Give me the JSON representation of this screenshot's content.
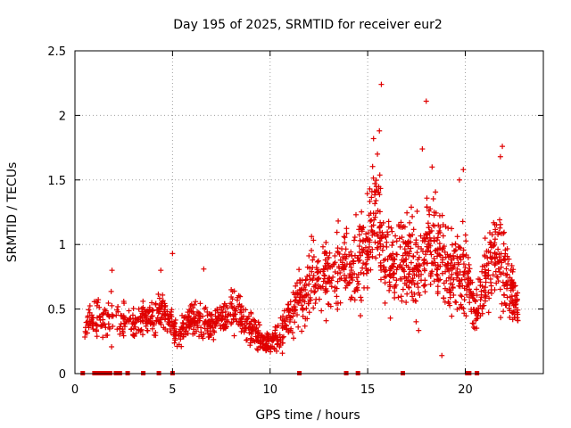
{
  "chart_data": {
    "type": "scatter",
    "title": "Day 195 of 2025, SRMTID for receiver eur2",
    "xlabel": "GPS time / hours",
    "ylabel": "SRMTID / TECUs",
    "xlim": [
      0,
      24
    ],
    "ylim": [
      0,
      2.5
    ],
    "x_ticks": [
      "0",
      "5",
      "10",
      "15",
      "20"
    ],
    "y_ticks": [
      "0",
      "0.5",
      "1",
      "1.5",
      "2",
      "2.5"
    ],
    "grid": true,
    "marker": "+",
    "color": "#e00000",
    "zero_points_x": [
      0.4,
      1.0,
      1.2,
      1.4,
      1.6,
      1.8,
      2.1,
      2.3,
      2.7,
      3.5,
      4.3,
      5.0,
      11.5,
      13.9,
      14.5,
      16.8,
      20.1,
      20.2,
      20.6
    ],
    "series": [
      {
        "name": "SRMTID",
        "samples": [
          [
            0.5,
            0.4,
            0.12
          ],
          [
            1.5,
            0.45,
            0.15
          ],
          [
            2.9,
            0.4,
            0.1
          ],
          [
            3.7,
            0.42,
            0.1
          ],
          [
            4.5,
            0.5,
            0.13
          ],
          [
            5.3,
            0.3,
            0.08
          ],
          [
            6.0,
            0.42,
            0.12
          ],
          [
            6.8,
            0.38,
            0.1
          ],
          [
            7.6,
            0.44,
            0.12
          ],
          [
            8.4,
            0.48,
            0.14
          ],
          [
            9.1,
            0.33,
            0.1
          ],
          [
            9.8,
            0.22,
            0.07
          ],
          [
            10.6,
            0.3,
            0.1
          ],
          [
            11.3,
            0.55,
            0.18
          ],
          [
            12.0,
            0.7,
            0.22
          ],
          [
            12.8,
            0.75,
            0.25
          ],
          [
            13.5,
            0.8,
            0.25
          ],
          [
            14.2,
            0.85,
            0.25
          ],
          [
            14.9,
            1.0,
            0.3
          ],
          [
            15.4,
            1.3,
            0.33
          ],
          [
            15.9,
            0.85,
            0.3
          ],
          [
            16.5,
            0.8,
            0.28
          ],
          [
            17.1,
            0.9,
            0.32
          ],
          [
            17.6,
            0.8,
            0.3
          ],
          [
            18.2,
            1.05,
            0.3
          ],
          [
            18.7,
            0.95,
            0.3
          ],
          [
            19.3,
            0.75,
            0.28
          ],
          [
            19.9,
            0.8,
            0.3
          ],
          [
            20.5,
            0.5,
            0.15
          ],
          [
            21.1,
            0.75,
            0.22
          ],
          [
            21.7,
            1.0,
            0.35
          ],
          [
            22.3,
            0.65,
            0.2
          ],
          [
            22.7,
            0.5,
            0.12
          ]
        ]
      }
    ],
    "outliers": [
      [
        15.7,
        2.24
      ],
      [
        18.0,
        2.11
      ],
      [
        15.6,
        1.88
      ],
      [
        15.3,
        1.82
      ],
      [
        17.8,
        1.74
      ],
      [
        21.9,
        1.76
      ],
      [
        21.8,
        1.68
      ],
      [
        19.9,
        1.58
      ],
      [
        15.5,
        1.7
      ],
      [
        18.3,
        1.6
      ],
      [
        5.0,
        0.93
      ],
      [
        1.9,
        0.8
      ],
      [
        4.4,
        0.8
      ],
      [
        6.6,
        0.81
      ],
      [
        18.8,
        0.14
      ],
      [
        19.7,
        1.5
      ]
    ]
  }
}
